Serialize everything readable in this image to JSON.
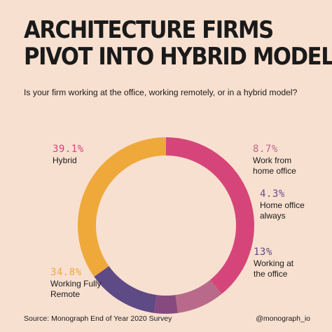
{
  "header": {
    "title_line1": "ARCHITECTURE FIRMS",
    "title_line2": "PIVOT INTO HYBRID MODEL",
    "subtitle": "Is your firm working at the office, working remotely, or in a hybrid model?"
  },
  "chart_data": {
    "type": "pie",
    "donut": true,
    "slices": [
      {
        "pct_label": "39.1%",
        "name": "Hybrid",
        "value": 39.1,
        "color": "#d6457a"
      },
      {
        "pct_label": "8.7%",
        "name": "Work from home office",
        "value": 8.7,
        "color": "#b96a8a"
      },
      {
        "pct_label": "4.3%",
        "name": "Home office always",
        "value": 4.3,
        "color": "#874a7e"
      },
      {
        "pct_label": "13%",
        "name": "Working at the office",
        "value": 13,
        "color": "#5e4a85"
      },
      {
        "pct_label": "34.8%",
        "name": "Working Fully Remote",
        "value": 34.8,
        "color": "#efa83a"
      }
    ],
    "label_colors": {
      "Hybrid": "#d6457a",
      "Work from home office": "#b96a8a",
      "Home office always": "#6a4a8a",
      "Working at the office": "#5e4a85",
      "Working Fully Remote": "#efa83a"
    }
  },
  "labels": {
    "hybrid": {
      "pct": "39.1%",
      "line1": "Hybrid"
    },
    "wfh": {
      "pct": "8.7%",
      "line1": "Work from",
      "line2": "home office"
    },
    "home_always": {
      "pct": "4.3%",
      "line1": "Home office",
      "line2": "always"
    },
    "office": {
      "pct": "13%",
      "line1": "Working at",
      "line2": "the office"
    },
    "remote": {
      "pct": "34.8%",
      "line1": "Working Fully",
      "line2": "Remote"
    }
  },
  "footer": {
    "source": "Source: Monograph End of Year 2020 Survey",
    "handle": "@monograph_io"
  }
}
